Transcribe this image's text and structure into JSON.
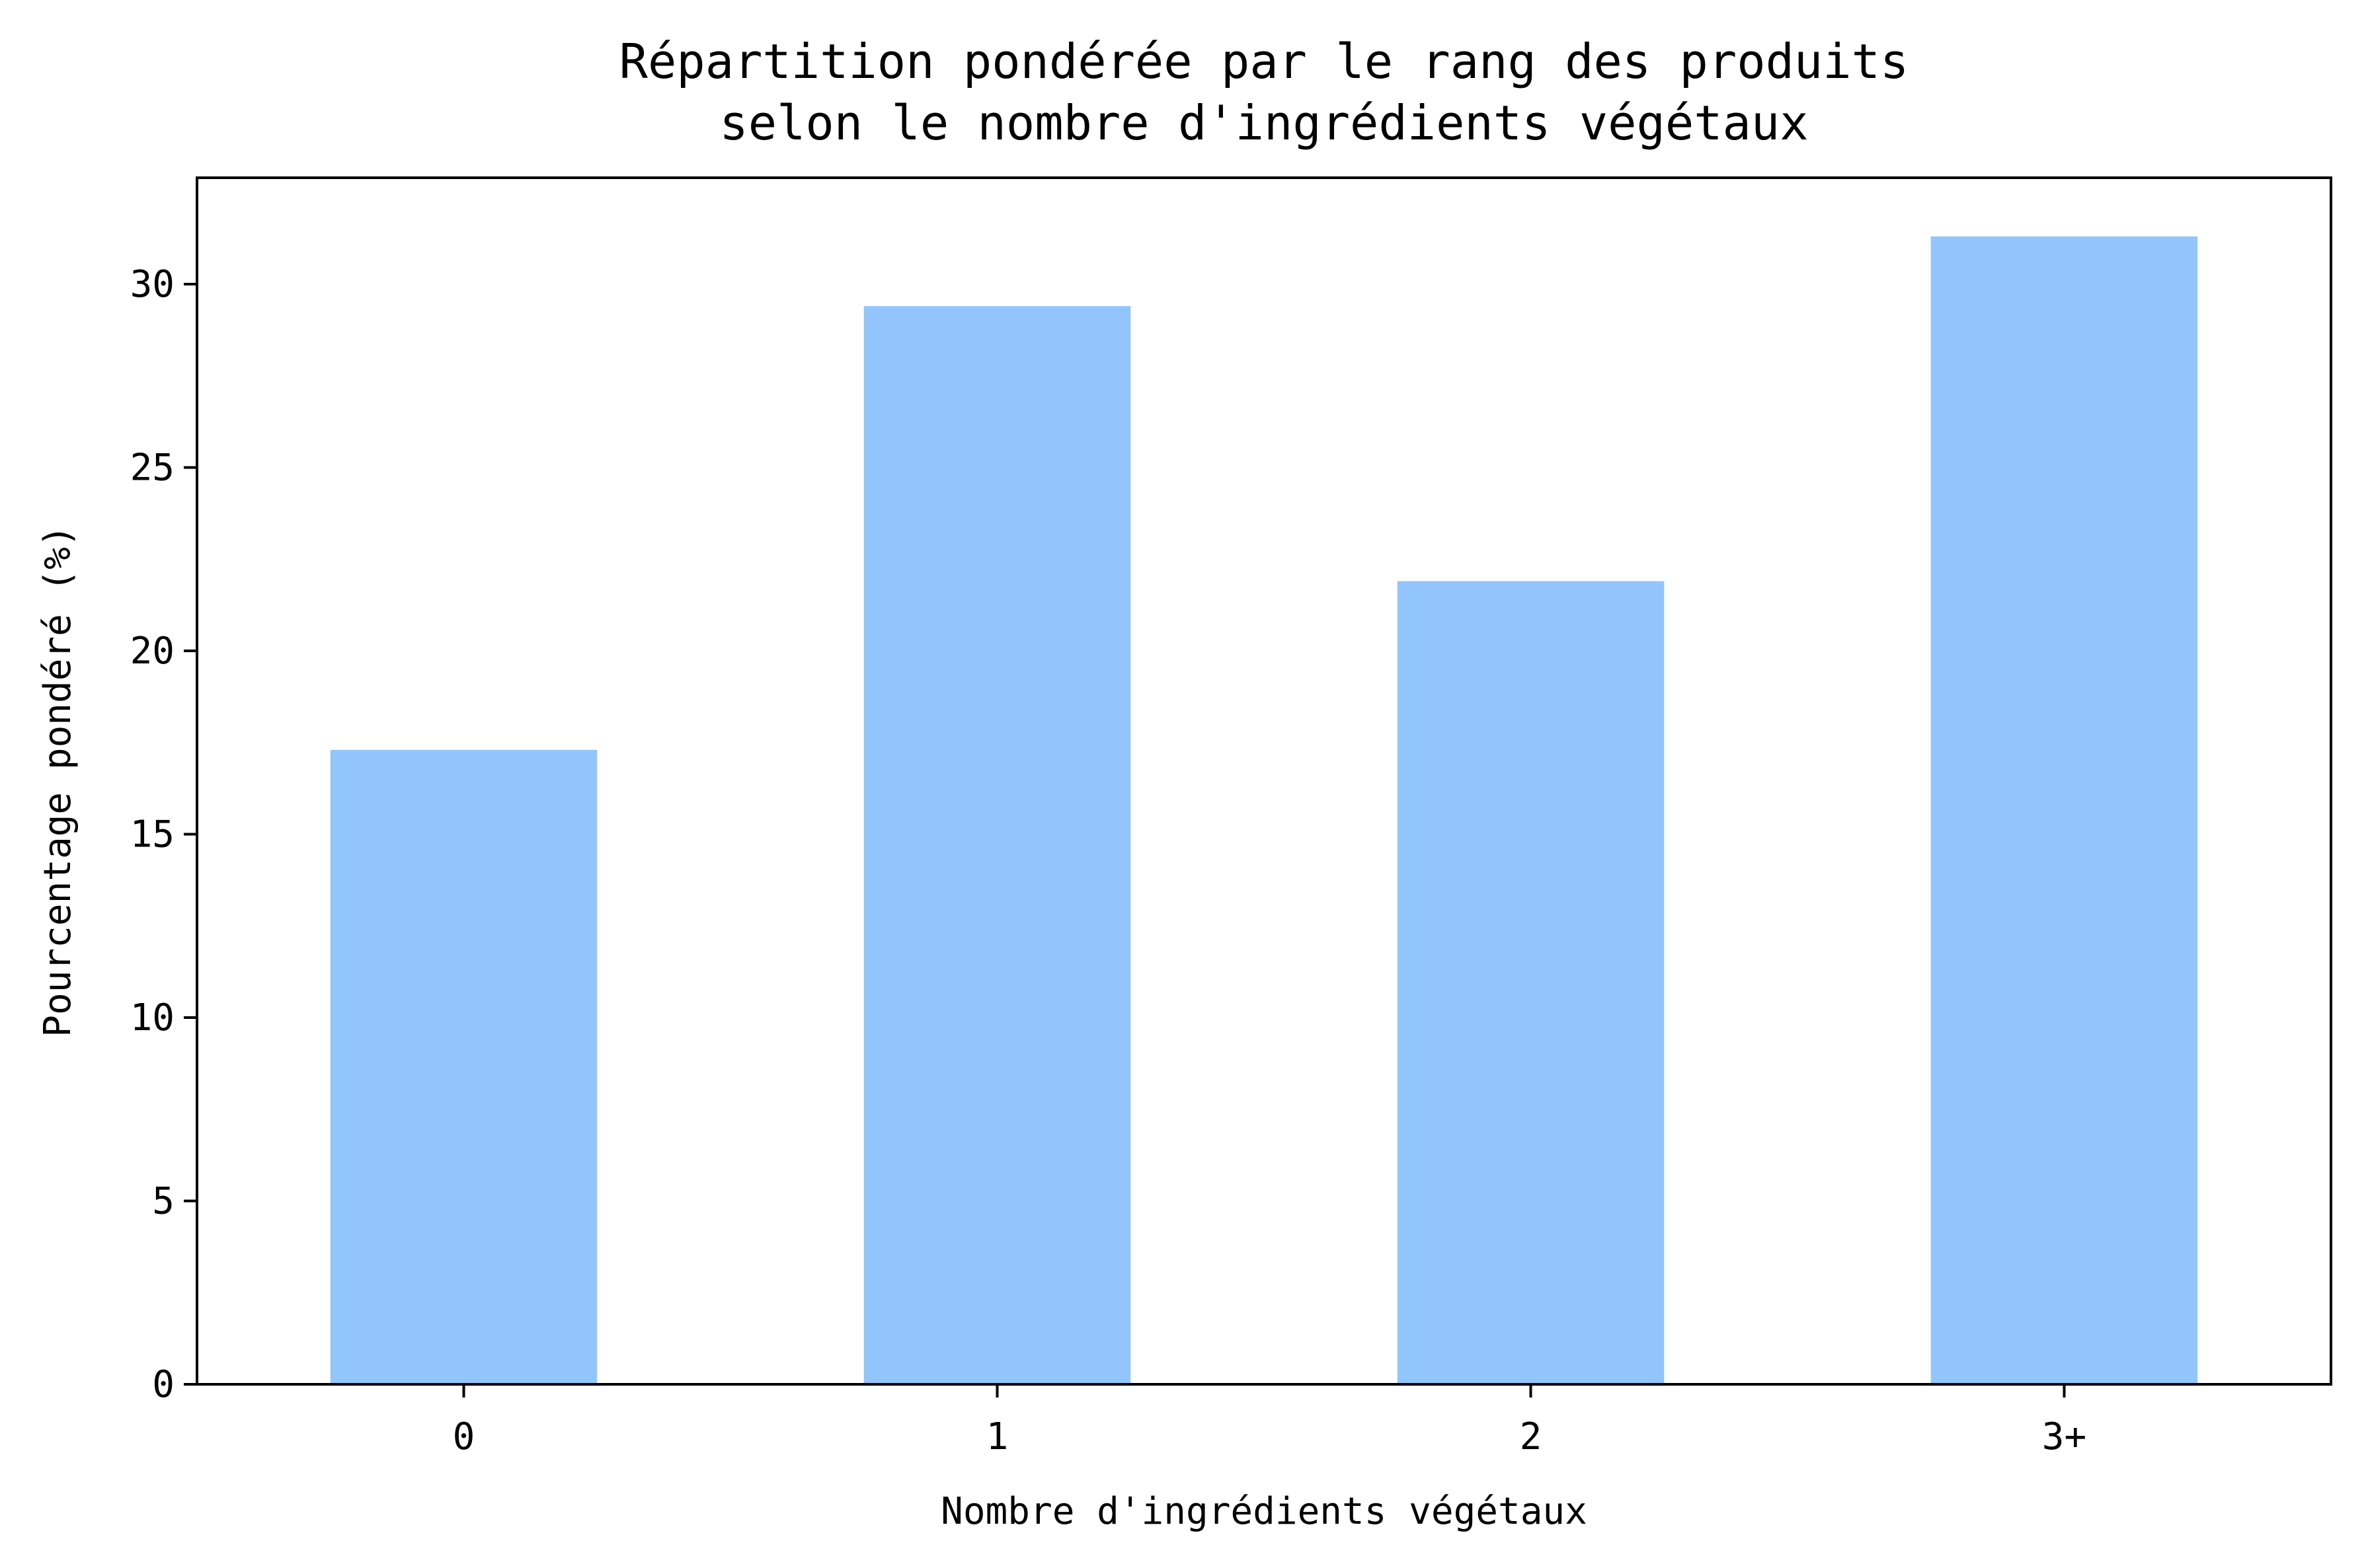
{
  "chart_data": {
    "type": "bar",
    "title": [
      "Répartition pondérée par le rang des produits",
      "selon le nombre d'ingrédients végétaux"
    ],
    "xlabel": "Nombre d'ingrédients végétaux",
    "ylabel": "Pourcentage pondéré (%)",
    "categories": [
      "0",
      "1",
      "2",
      "3+"
    ],
    "values": [
      17.3,
      29.4,
      21.9,
      31.3
    ],
    "ylim": [
      0,
      32.9
    ],
    "yticks": [
      0,
      5,
      10,
      15,
      20,
      25,
      30
    ],
    "grid": false,
    "legend": "none",
    "bar_color": "#93c5fd"
  }
}
